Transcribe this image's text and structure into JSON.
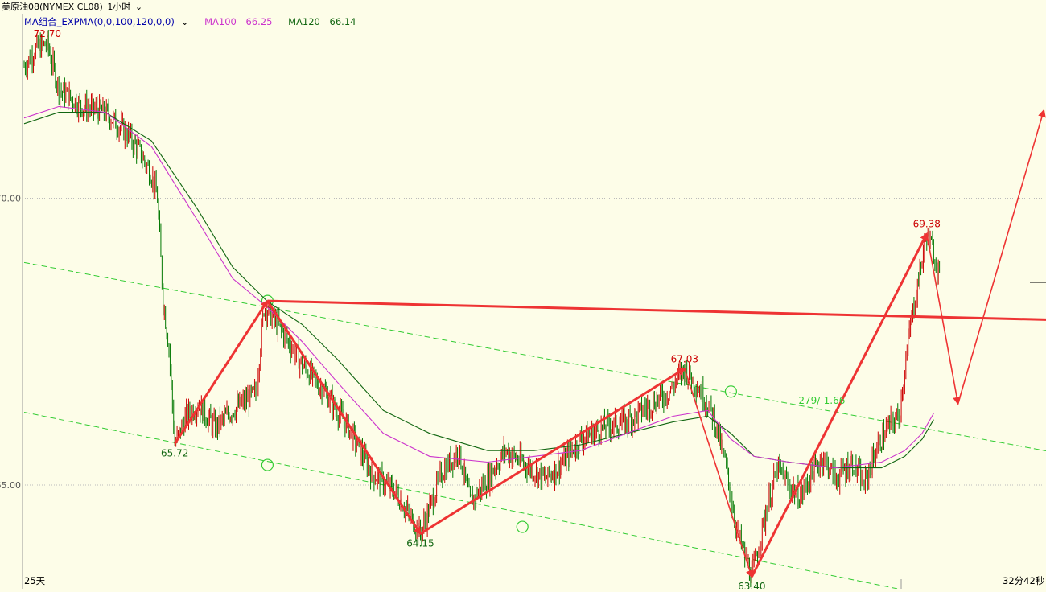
{
  "header": {
    "symbol": "美原油08(NYMEX CL08)",
    "period": "1小时",
    "period_arrow": "⌄"
  },
  "indicator": {
    "name": "MA组合_EXPMA(0,0,100,120,0,0)",
    "arrow": "⌄",
    "ma100_label": "MA100",
    "ma100_value": "66.25",
    "ma120_label": "MA120",
    "ma120_value": "66.14"
  },
  "colors": {
    "background": "#fdfde8",
    "up_candle": "#cc0000",
    "down_candle": "#007700",
    "ma100": "#cc33cc",
    "ma120": "#116611",
    "channel": "#33cc33",
    "arrow": "#ee3333",
    "grid": "#bbbbbb"
  },
  "footer": {
    "left_label": "25天",
    "right_label": "32分42秒"
  },
  "chart_data": {
    "type": "candlestick",
    "y_ticks": [
      {
        "value": 70.0,
        "label": "70.00"
      },
      {
        "value": 65.0,
        "label": "65.00"
      }
    ],
    "ylim": [
      62.5,
      73.4
    ],
    "annotations": [
      {
        "text": "72.70",
        "value": 72.7,
        "bar": 20,
        "color": "#cc0000",
        "pos": "above"
      },
      {
        "text": "65.72",
        "value": 65.72,
        "bar": 130,
        "color": "#116611",
        "pos": "below"
      },
      {
        "text": "64.15",
        "value": 64.15,
        "bar": 342,
        "color": "#116611",
        "pos": "below"
      },
      {
        "text": "67.03",
        "value": 67.03,
        "bar": 570,
        "color": "#cc0000",
        "pos": "above"
      },
      {
        "text": "63.40",
        "value": 63.4,
        "bar": 628,
        "color": "#116611",
        "pos": "below"
      },
      {
        "text": "69.38",
        "value": 69.38,
        "bar": 779,
        "color": "#cc0000",
        "pos": "above"
      },
      {
        "text": "279/-1.66",
        "value": 66.57,
        "bar": 660,
        "color": "#33cc33",
        "pos": "right"
      }
    ],
    "price_path": [
      [
        0,
        72.3
      ],
      [
        10,
        72.6
      ],
      [
        20,
        72.7
      ],
      [
        30,
        71.9
      ],
      [
        50,
        71.6
      ],
      [
        70,
        71.5
      ],
      [
        90,
        71.1
      ],
      [
        100,
        70.8
      ],
      [
        110,
        70.4
      ],
      [
        115,
        70.0
      ],
      [
        120,
        68.2
      ],
      [
        125,
        67.4
      ],
      [
        130,
        65.72
      ],
      [
        140,
        66.2
      ],
      [
        150,
        66.4
      ],
      [
        165,
        66.0
      ],
      [
        180,
        66.3
      ],
      [
        200,
        66.6
      ],
      [
        207,
        68.1
      ],
      [
        215,
        67.9
      ],
      [
        225,
        67.6
      ],
      [
        240,
        67.1
      ],
      [
        260,
        66.6
      ],
      [
        280,
        66.0
      ],
      [
        300,
        65.2
      ],
      [
        320,
        64.9
      ],
      [
        342,
        64.15
      ],
      [
        350,
        64.6
      ],
      [
        360,
        65.2
      ],
      [
        375,
        65.6
      ],
      [
        385,
        64.7
      ],
      [
        400,
        65.1
      ],
      [
        415,
        65.6
      ],
      [
        430,
        65.4
      ],
      [
        450,
        65.1
      ],
      [
        465,
        65.4
      ],
      [
        480,
        65.8
      ],
      [
        500,
        66.0
      ],
      [
        520,
        66.1
      ],
      [
        540,
        66.4
      ],
      [
        555,
        66.6
      ],
      [
        570,
        67.03
      ],
      [
        585,
        66.6
      ],
      [
        595,
        66.2
      ],
      [
        605,
        65.4
      ],
      [
        615,
        64.2
      ],
      [
        628,
        63.4
      ],
      [
        640,
        64.5
      ],
      [
        650,
        65.3
      ],
      [
        660,
        65.0
      ],
      [
        670,
        64.8
      ],
      [
        680,
        65.2
      ],
      [
        690,
        65.5
      ],
      [
        700,
        65.1
      ],
      [
        715,
        65.4
      ],
      [
        725,
        65.0
      ],
      [
        735,
        65.6
      ],
      [
        745,
        66.0
      ],
      [
        755,
        66.2
      ],
      [
        765,
        67.8
      ],
      [
        772,
        68.6
      ],
      [
        779,
        69.38
      ],
      [
        784,
        69.1
      ],
      [
        790,
        68.7
      ]
    ],
    "ma100": [
      [
        0,
        71.4
      ],
      [
        30,
        71.6
      ],
      [
        70,
        71.5
      ],
      [
        110,
        70.9
      ],
      [
        150,
        69.6
      ],
      [
        180,
        68.6
      ],
      [
        210,
        68.1
      ],
      [
        240,
        67.5
      ],
      [
        270,
        66.8
      ],
      [
        310,
        65.9
      ],
      [
        350,
        65.5
      ],
      [
        400,
        65.4
      ],
      [
        440,
        65.5
      ],
      [
        480,
        65.6
      ],
      [
        520,
        65.9
      ],
      [
        560,
        66.2
      ],
      [
        590,
        66.3
      ],
      [
        610,
        65.8
      ],
      [
        630,
        65.5
      ],
      [
        660,
        65.4
      ],
      [
        700,
        65.3
      ],
      [
        740,
        65.4
      ],
      [
        760,
        65.6
      ],
      [
        775,
        65.9
      ],
      [
        785,
        66.25
      ]
    ],
    "ma120": [
      [
        0,
        71.3
      ],
      [
        30,
        71.5
      ],
      [
        70,
        71.5
      ],
      [
        110,
        71.0
      ],
      [
        150,
        69.8
      ],
      [
        180,
        68.8
      ],
      [
        210,
        68.2
      ],
      [
        240,
        67.8
      ],
      [
        270,
        67.2
      ],
      [
        310,
        66.3
      ],
      [
        350,
        65.9
      ],
      [
        400,
        65.6
      ],
      [
        440,
        65.6
      ],
      [
        480,
        65.7
      ],
      [
        520,
        65.9
      ],
      [
        560,
        66.1
      ],
      [
        590,
        66.2
      ],
      [
        610,
        65.9
      ],
      [
        630,
        65.5
      ],
      [
        660,
        65.4
      ],
      [
        700,
        65.3
      ],
      [
        740,
        65.3
      ],
      [
        760,
        65.5
      ],
      [
        775,
        65.8
      ],
      [
        785,
        66.14
      ]
    ],
    "channel_lines": [
      {
        "from": [
          0,
          68.88
        ],
        "to": [
          870,
          65.64
        ]
      },
      {
        "from": [
          0,
          66.27
        ],
        "to": [
          715,
          63.35
        ]
      }
    ],
    "channel_markers": [
      {
        "bar": 210,
        "value": 68.21
      },
      {
        "bar": 210,
        "value": 65.35
      },
      {
        "bar": 430,
        "value": 64.27
      },
      {
        "bar": 610,
        "value": 66.63
      }
    ],
    "trend_arrows": [
      {
        "from": [
          130,
          65.72
        ],
        "to": [
          210,
          68.21
        ],
        "weight": "bold"
      },
      {
        "from": [
          210,
          68.21
        ],
        "to": [
          342,
          64.15
        ],
        "weight": "bold"
      },
      {
        "from": [
          342,
          64.15
        ],
        "to": [
          570,
          67.03
        ],
        "weight": "bold"
      },
      {
        "from": [
          570,
          67.03
        ],
        "to": [
          628,
          63.4
        ],
        "weight": "thin"
      },
      {
        "from": [
          628,
          63.4
        ],
        "to": [
          779,
          69.38
        ],
        "weight": "bold"
      },
      {
        "from": [
          779,
          69.38
        ],
        "to": [
          806,
          66.42
        ],
        "weight": "thin"
      },
      {
        "from": [
          806,
          66.42
        ],
        "to": [
          880,
          71.53
        ],
        "weight": "thin"
      },
      {
        "from": [
          210,
          68.21
        ],
        "to": [
          890,
          67.88
        ],
        "weight": "bold"
      }
    ],
    "grid": "dotted-horizontal",
    "legend": "top-left"
  }
}
